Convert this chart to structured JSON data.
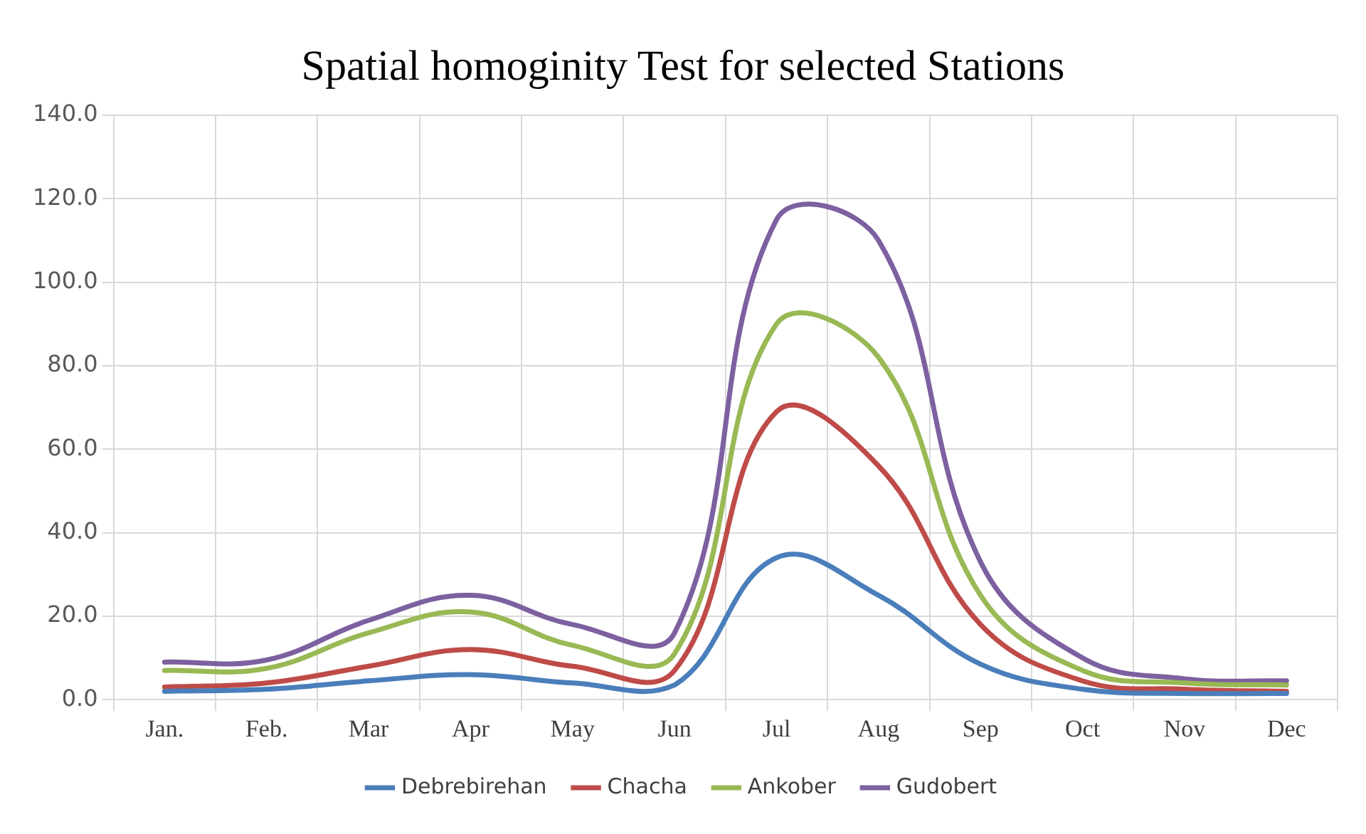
{
  "chart_data": {
    "type": "line",
    "title": "Spatial homoginity Test for selected Stations",
    "categories": [
      "Jan.",
      "Feb.",
      "Mar",
      "Apr",
      "May",
      "Jun",
      "Jul",
      "Aug",
      "Sep",
      "Oct",
      "Nov",
      "Dec"
    ],
    "series": [
      {
        "name": "Debrebirehan",
        "color": "#4a7ebb",
        "values": [
          2,
          2.5,
          4.5,
          6,
          4,
          3.5,
          34,
          25,
          8.5,
          2.5,
          1.5,
          1.5
        ]
      },
      {
        "name": "Chacha",
        "color": "#be4b48",
        "values": [
          3,
          4,
          8,
          12,
          8,
          7,
          69,
          56,
          18,
          4.5,
          2.5,
          2
        ]
      },
      {
        "name": "Ankober",
        "color": "#98b954",
        "values": [
          7,
          7.5,
          16,
          21,
          13,
          11,
          90,
          82,
          25,
          7,
          4,
          3.5
        ]
      },
      {
        "name": "Gudobert",
        "color": "#7d60a0",
        "values": [
          9,
          9.5,
          19,
          25,
          18,
          16,
          115,
          110,
          33,
          10,
          5,
          4.5
        ]
      }
    ],
    "ylim": [
      0,
      140
    ],
    "yticks": [
      {
        "value": 0,
        "label": "0.0"
      },
      {
        "value": 20,
        "label": "20.0"
      },
      {
        "value": 40,
        "label": "40.0"
      },
      {
        "value": 60,
        "label": "60.0"
      },
      {
        "value": 80,
        "label": "80.0"
      },
      {
        "value": 100,
        "label": "100.0"
      },
      {
        "value": 120,
        "label": "120.0"
      },
      {
        "value": 140,
        "label": "140.0"
      }
    ],
    "grid": true,
    "legend": "bottom",
    "marker": "none",
    "line_style": "solid"
  }
}
